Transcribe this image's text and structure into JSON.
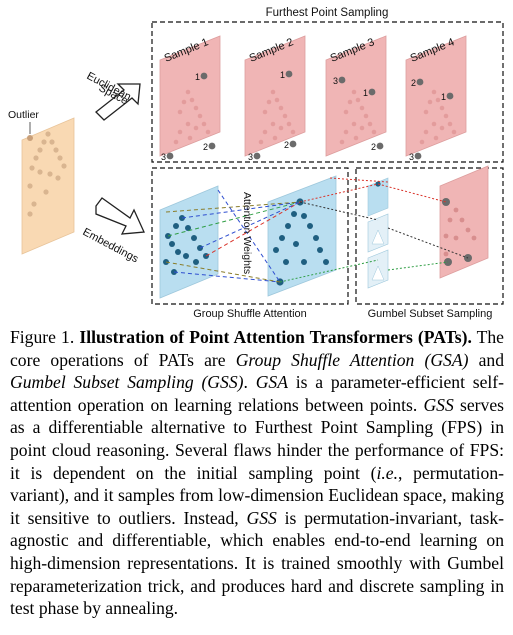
{
  "figure": {
    "labels": {
      "top_box": "Furthest Point Sampling",
      "euclidean_line1": "Euclidean",
      "euclidean_line2": "Space",
      "outlier": "Outlier",
      "embeddings": "Embeddings",
      "attention_weights": "Attention Weights",
      "gsa_box": "Group Shuffle Attention",
      "gss_box": "Gumbel Subset Sampling"
    },
    "samples": [
      {
        "label": "Sample 1",
        "marks": [
          "1",
          "2",
          "3"
        ]
      },
      {
        "label": "Sample 2",
        "marks": [
          "1",
          "2",
          "3"
        ]
      },
      {
        "label": "Sample 3",
        "marks": [
          "3",
          "1",
          "2"
        ]
      },
      {
        "label": "Sample 4",
        "marks": [
          "2",
          "1",
          "3"
        ]
      }
    ],
    "colors": {
      "input_panel": "#f9d9b3",
      "sample_panel": "#f0b5b5",
      "embedding_panel": "#b9def0",
      "dot": "#1f4f6b",
      "line_red": "#d9342b",
      "line_green": "#2f9e44",
      "line_blue": "#2f4fd0",
      "line_olive": "#8a7d2a"
    }
  },
  "caption": {
    "figure_num": "Figure 1.",
    "title": "Illustration of Point Attention Transformers (PATs).",
    "s1": "The core operations of PATs are",
    "gsa_full": "Group Shuffle Attention (GSA)",
    "and": "and",
    "gss_full": "Gumbel Subset Sampling (GSS)",
    "period": ".",
    "gsa": "GSA",
    "s2": "is a parameter-efficient self-attention operation on learning relations between points.",
    "gss": "GSS",
    "s3": "serves as a differentiable alternative to Furthest Point Sampling (FPS) in point cloud reasoning.  Several flaws hinder the performance of FPS: it is dependent on the initial sampling point (",
    "ie": "i.e.",
    "s4": ", permutation-variant), and it samples from low-dimension Euclidean space, making it sensitive to outliers.  Instead,",
    "gss2": "GSS",
    "s5": "is permutation-invariant, task-agnostic and differentiable, which enables end-to-end learning on high-dimension representations. It is trained smoothly with Gumbel reparameterization trick, and produces hard and discrete sampling in test phase by annealing."
  }
}
